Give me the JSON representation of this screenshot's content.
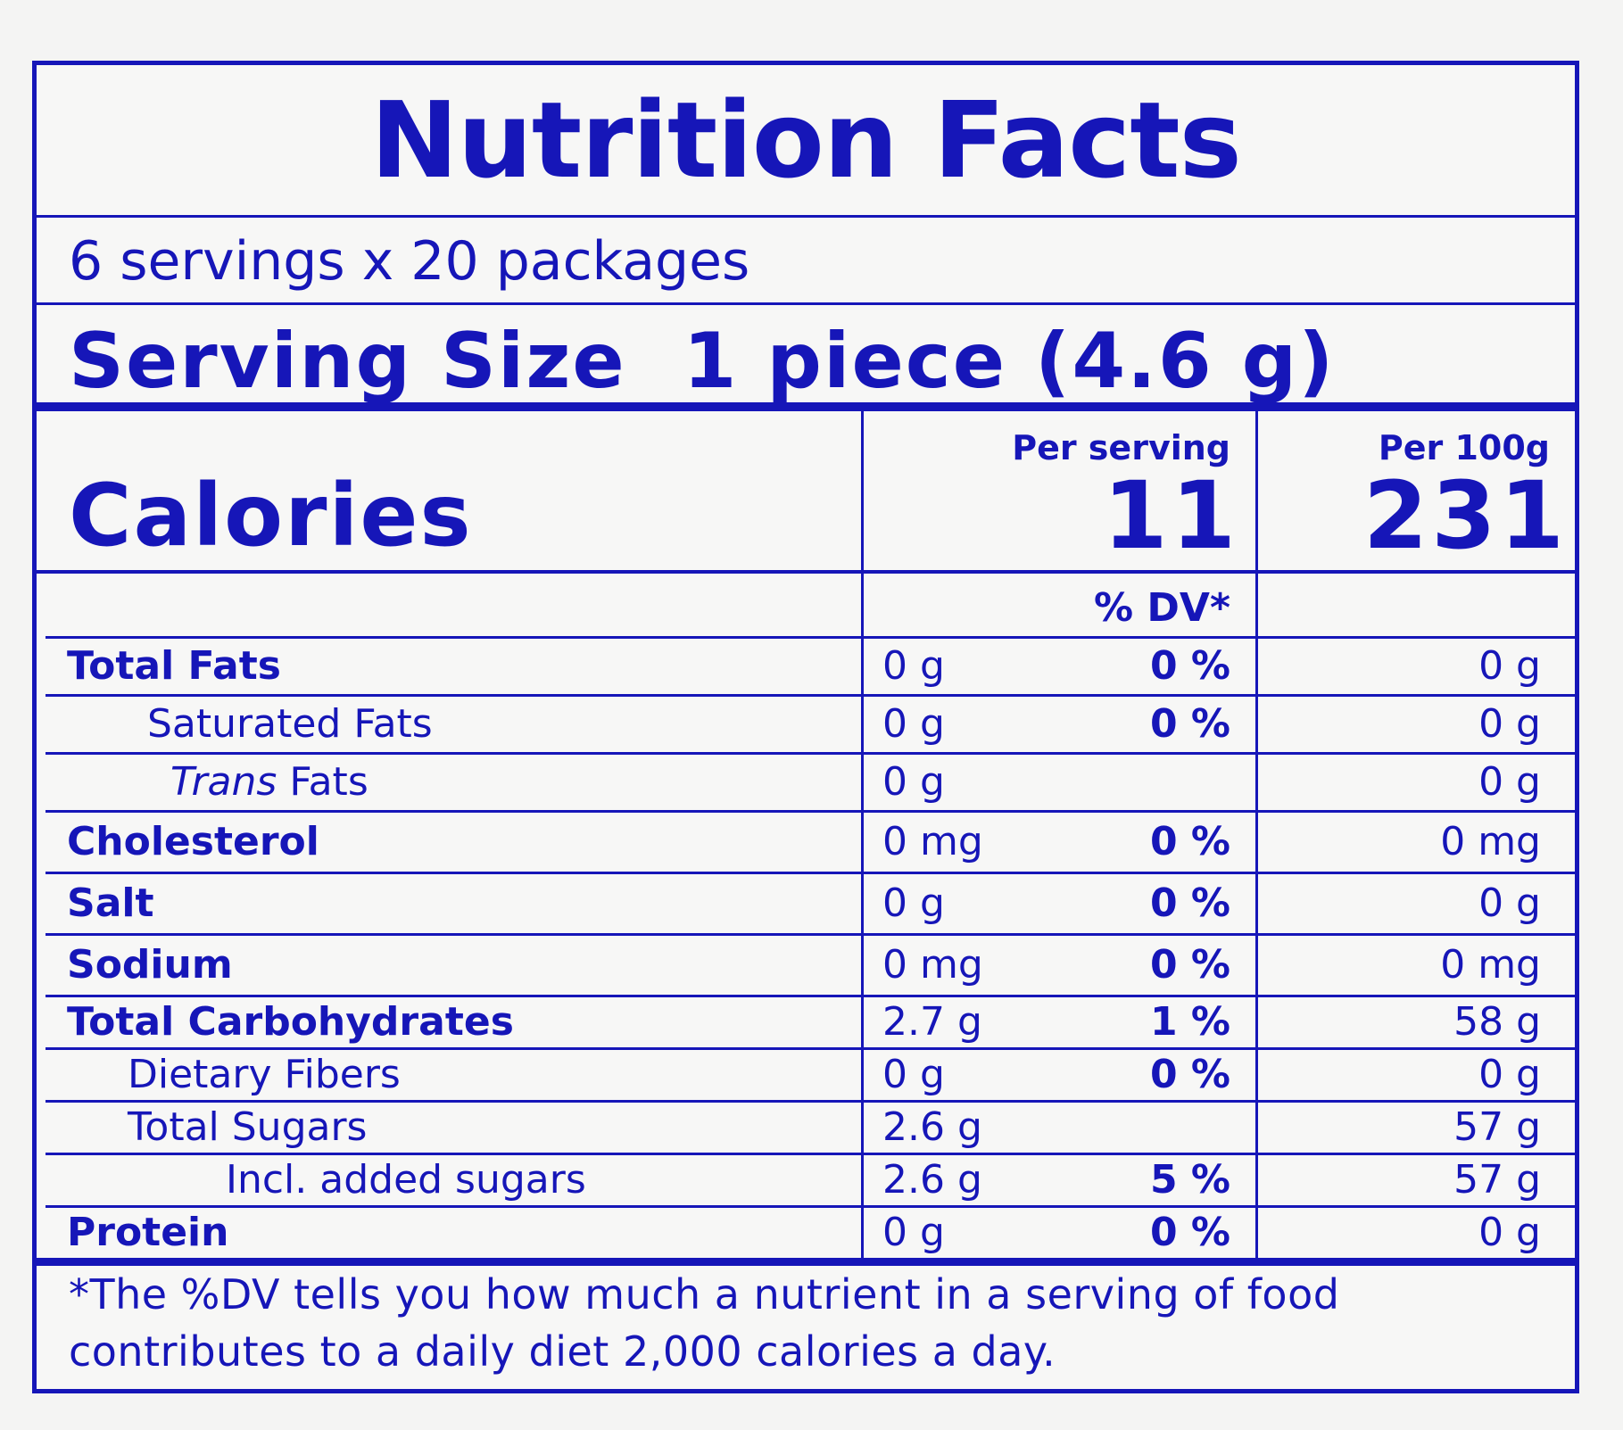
{
  "title": "Nutrition Facts",
  "servings_per_container": "6 servings x 20 packages",
  "serving_size": {
    "label": "Serving Size",
    "value": "1 piece (4.6 g)"
  },
  "calories": {
    "label": "Calories",
    "per_serving_header": "Per serving",
    "per_100g_header": "Per 100g",
    "per_serving_value": "11",
    "per_100g_value": "231"
  },
  "dv_header": "% DV*",
  "nutrients": [
    {
      "name": "Total Fats",
      "amount": "0 g",
      "dv": "0 %",
      "per100": "0 g"
    },
    {
      "name": "Saturated Fats",
      "amount": "0 g",
      "dv": "0 %",
      "per100": "0 g"
    },
    {
      "name_italic": "Trans",
      "name": "Fats",
      "amount": "0 g",
      "dv": "",
      "per100": "0 g"
    },
    {
      "name": "Cholesterol",
      "amount": "0 mg",
      "dv": "0 %",
      "per100": "0 mg"
    },
    {
      "name": "Salt",
      "amount": "0 g",
      "dv": "0 %",
      "per100": "0 g"
    },
    {
      "name": "Sodium",
      "amount": "0 mg",
      "dv": "0 %",
      "per100": "0 mg"
    },
    {
      "name": "Total Carbohydrates",
      "amount": "2.7 g",
      "dv": "1 %",
      "per100": "58 g"
    },
    {
      "name": "Dietary Fibers",
      "amount": "0 g",
      "dv": "0 %",
      "per100": "0 g"
    },
    {
      "name": "Total Sugars",
      "amount": "2.6 g",
      "dv": "",
      "per100": "57 g"
    },
    {
      "name": "Incl. added sugars",
      "amount": "2.6 g",
      "dv": "5 %",
      "per100": "57 g"
    },
    {
      "name": "Protein",
      "amount": "0 g",
      "dv": "0 %",
      "per100": "0 g"
    }
  ],
  "footnote": "*The %DV tells you how much a nutrient in a serving of food contributes to a daily diet 2,000 calories a day."
}
